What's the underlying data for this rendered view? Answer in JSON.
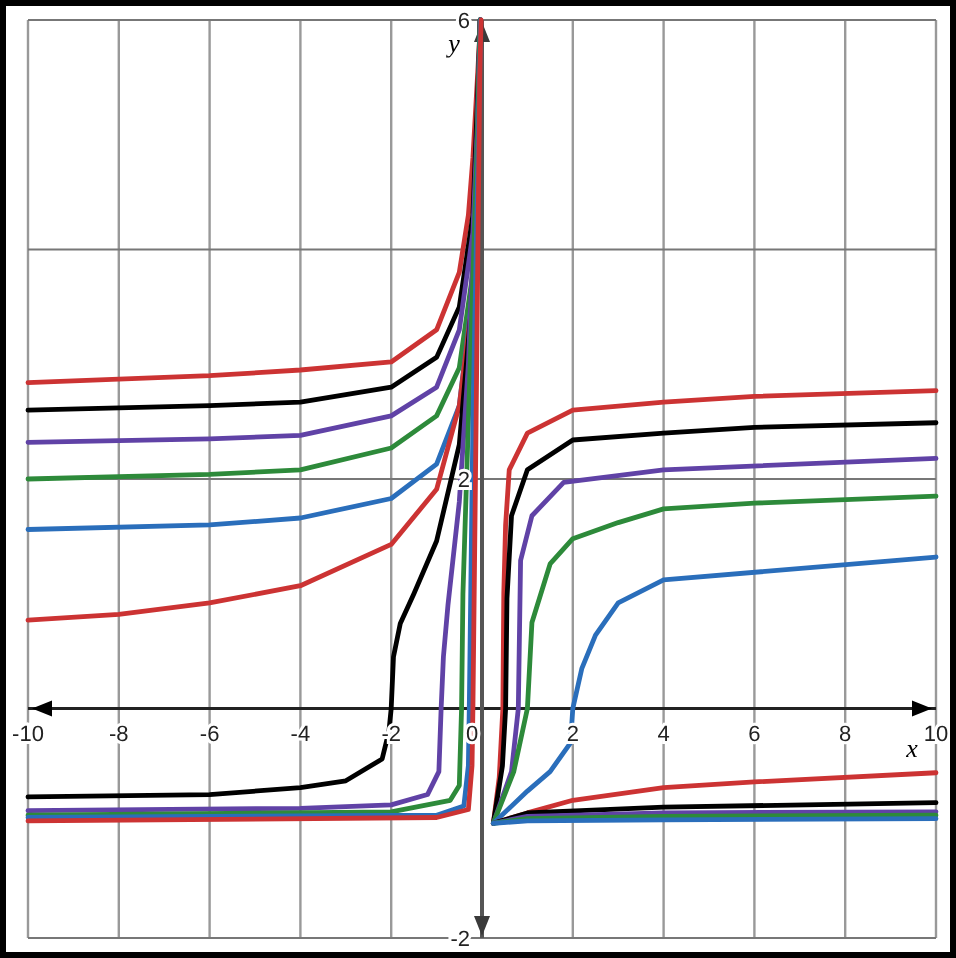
{
  "chart_data": {
    "type": "line",
    "xlabel": "x",
    "ylabel": "y",
    "xlim": [
      -10,
      10
    ],
    "ylim": [
      -2,
      6
    ],
    "xticks": [
      -10,
      -8,
      -6,
      -4,
      -2,
      0,
      2,
      4,
      6,
      8,
      10
    ],
    "yticks": [
      -2,
      {
        "value": 0,
        "label": null
      },
      2,
      {
        "value": 4,
        "label": null
      },
      6
    ],
    "grid": true,
    "marker": "none",
    "line_style": "solid",
    "series": [
      {
        "color": "#cc3333",
        "x": [
          -10,
          -6,
          -4,
          -2,
          -1,
          -0.5,
          -0.3,
          -0.2,
          -0.1,
          -0.03
        ],
        "values": [
          2.84,
          2.9,
          2.95,
          3.02,
          3.3,
          3.8,
          4.3,
          4.8,
          5.5,
          6
        ]
      },
      {
        "color": "#000000",
        "x": [
          -10,
          -6,
          -4,
          -2,
          -1,
          -0.5,
          -0.2,
          -0.1,
          -0.04
        ],
        "values": [
          2.6,
          2.64,
          2.67,
          2.8,
          3.06,
          3.5,
          4.3,
          5.3,
          6
        ]
      },
      {
        "color": "#6042a6",
        "x": [
          -10,
          -6,
          -4,
          -2,
          -1,
          -0.5,
          -0.2,
          -0.1,
          -0.04
        ],
        "values": [
          2.32,
          2.35,
          2.38,
          2.55,
          2.8,
          3.3,
          4.15,
          5.1,
          6
        ]
      },
      {
        "color": "#2d8a3a",
        "x": [
          -10,
          -6,
          -4,
          -2,
          -1,
          -0.5,
          -0.2,
          -0.1,
          -0.04
        ],
        "values": [
          2.0,
          2.04,
          2.08,
          2.27,
          2.55,
          2.97,
          3.8,
          4.9,
          6
        ]
      },
      {
        "color": "#2a6ebb",
        "x": [
          -10,
          -6,
          -4,
          -2,
          -1,
          -0.5,
          -0.2,
          -0.1,
          -0.04
        ],
        "values": [
          1.56,
          1.6,
          1.66,
          1.83,
          2.13,
          2.64,
          3.65,
          4.8,
          6
        ]
      },
      {
        "color": "#cc3333",
        "x": [
          -10,
          -8,
          -6,
          -4,
          -2,
          -1,
          -0.5,
          -0.2,
          -0.1,
          -0.04
        ],
        "values": [
          0.77,
          0.82,
          0.92,
          1.07,
          1.43,
          1.91,
          2.64,
          3.6,
          4.7,
          6
        ]
      },
      {
        "color": "#000000",
        "x": [
          -10,
          -6,
          -4,
          -3,
          -2.2,
          -2.05,
          -2,
          -1.95,
          -1.8,
          -1.5,
          -1,
          -0.5,
          -0.2,
          -0.1,
          -0.04
        ],
        "values": [
          -0.77,
          -0.75,
          -0.69,
          -0.63,
          -0.44,
          -0.2,
          0,
          0.45,
          0.74,
          1.0,
          1.46,
          2.3,
          3.65,
          4.8,
          6
        ]
      },
      {
        "color": "#6042a6",
        "x": [
          -10,
          -4,
          -2,
          -1.2,
          -0.95,
          -0.9,
          -0.85,
          -0.75,
          -0.5,
          -0.3,
          -0.1,
          -0.04
        ],
        "values": [
          -0.89,
          -0.87,
          -0.84,
          -0.75,
          -0.55,
          0,
          0.45,
          0.9,
          1.8,
          3,
          5,
          6
        ]
      },
      {
        "color": "#2d8a3a",
        "x": [
          -10,
          -2,
          -0.7,
          -0.5,
          -0.45,
          -0.42,
          -0.3,
          -0.1,
          -0.04
        ],
        "values": [
          -0.93,
          -0.9,
          -0.8,
          -0.67,
          0,
          1,
          2.5,
          5,
          6
        ]
      },
      {
        "color": "#2a6ebb",
        "x": [
          -10,
          -1,
          -0.4,
          -0.3,
          -0.28,
          -0.2,
          -0.08,
          -0.03
        ],
        "values": [
          -0.95,
          -0.93,
          -0.85,
          -0.5,
          0,
          2.5,
          5,
          6
        ]
      },
      {
        "color": "#cc3333",
        "x": [
          -10,
          -1,
          -0.3,
          -0.22,
          -0.2,
          -0.13,
          -0.05,
          -0.02
        ],
        "values": [
          -0.98,
          -0.95,
          -0.88,
          -0.5,
          0,
          2.5,
          5.5,
          6
        ]
      },
      {
        "color": "#cc3333",
        "x": [
          0.25,
          0.38,
          0.46,
          0.48,
          0.52,
          0.6,
          1,
          2,
          4,
          6,
          10
        ],
        "values": [
          -1,
          -0.6,
          0,
          1.0,
          1.6,
          2.08,
          2.4,
          2.6,
          2.67,
          2.72,
          2.77
        ]
      },
      {
        "color": "#000000",
        "x": [
          0.25,
          0.45,
          0.52,
          0.55,
          0.65,
          1,
          2,
          4,
          6,
          10
        ],
        "values": [
          -1,
          -0.5,
          0,
          0.96,
          1.68,
          2.08,
          2.34,
          2.4,
          2.45,
          2.49
        ]
      },
      {
        "color": "#6042a6",
        "x": [
          0.25,
          0.65,
          0.8,
          0.85,
          1.1,
          1.8,
          4,
          10
        ],
        "values": [
          -1,
          -0.55,
          0,
          1.29,
          1.68,
          1.97,
          2.08,
          2.18
        ]
      },
      {
        "color": "#2d8a3a",
        "x": [
          0.25,
          0.7,
          1.0,
          1.1,
          1.5,
          2,
          3,
          4,
          6,
          10
        ],
        "values": [
          -1,
          -0.55,
          0,
          0.75,
          1.26,
          1.48,
          1.62,
          1.74,
          1.79,
          1.85
        ]
      },
      {
        "color": "#2a6ebb",
        "x": [
          0.25,
          1,
          1.5,
          1.95,
          2,
          2.2,
          2.5,
          3,
          4,
          10
        ],
        "values": [
          -1,
          -0.72,
          -0.55,
          -0.3,
          0,
          0.35,
          0.64,
          0.92,
          1.12,
          1.32
        ]
      },
      {
        "color": "#cc3333",
        "x": [
          0.25,
          1,
          2,
          4,
          6,
          10
        ],
        "values": [
          -1,
          -0.91,
          -0.8,
          -0.69,
          -0.64,
          -0.56
        ]
      },
      {
        "color": "#000000",
        "x": [
          0.25,
          1,
          4,
          10
        ],
        "values": [
          -1,
          -0.91,
          -0.86,
          -0.82
        ]
      },
      {
        "color": "#6042a6",
        "x": [
          0.25,
          1,
          4,
          10
        ],
        "values": [
          -1,
          -0.94,
          -0.91,
          -0.9
        ]
      },
      {
        "color": "#2d8a3a",
        "x": [
          0.25,
          1,
          4,
          10
        ],
        "values": [
          -1,
          -0.96,
          -0.94,
          -0.93
        ]
      },
      {
        "color": "#2a6ebb",
        "x": [
          0.25,
          1,
          4,
          10
        ],
        "values": [
          -1,
          -0.98,
          -0.97,
          -0.96
        ]
      }
    ]
  }
}
